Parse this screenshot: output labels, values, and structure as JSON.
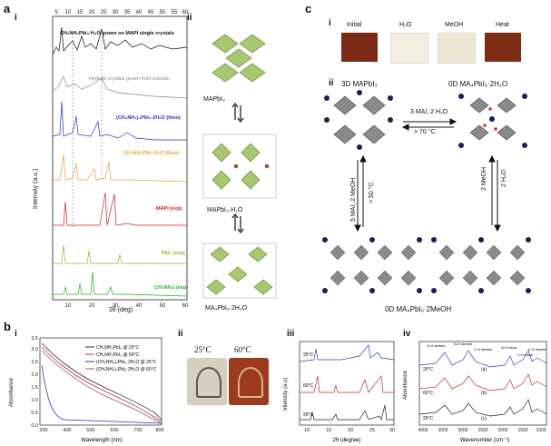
{
  "panel_a": {
    "letter": "a",
    "sub_i": "i",
    "sub_ii": "ii",
    "top_ticks": [
      "5",
      "10",
      "15",
      "20",
      "25",
      "30",
      "35",
      "40",
      "45",
      "50",
      "55",
      "60"
    ],
    "bottom_ticks": [
      "10",
      "20",
      "30",
      "40",
      "50",
      "60"
    ],
    "xlabel": "2θ (deg)",
    "ylabel": "Intensity (a.u.)",
    "traces": [
      {
        "label": "CH₃NH₃PbI₃·H₂O grown on MAPI single crystals",
        "color": "#111111"
      },
      {
        "label": "Hydrate crystals grown from solution",
        "color": "#8a8a8a"
      },
      {
        "label": "(CH₃NH₃)₄PbI₆·2H₂O (theo)",
        "color": "#2b2bd0"
      },
      {
        "label": "CH₃NH₃PbI₃·H₂O (theo)",
        "color": "#e6a23a"
      },
      {
        "label": "MAPI (exp)",
        "color": "#c62020"
      },
      {
        "label": "PbI₂ (exp)",
        "color": "#8ab82a"
      },
      {
        "label": "CH₃NH₃I (exp)",
        "color": "#1bb01b"
      }
    ],
    "structures": [
      "MAPbI₃",
      "MAPbI₃·H₂O",
      "MA₄PbI₆·2H₂O"
    ]
  },
  "panel_c": {
    "letter": "c",
    "sub_i": "i",
    "sub_ii": "ii",
    "swatches": [
      {
        "label": "Initial",
        "color": "#7a2a15"
      },
      {
        "label": "H₂O",
        "color": "#f2eee0"
      },
      {
        "label": "MeOH",
        "color": "#ede7d3"
      },
      {
        "label": "Heat",
        "color": "#7d2d16"
      }
    ],
    "label_3d": "3D MAPbI₃",
    "label_0d_hyd": "0D MA₄PbI₆·2H₂O",
    "label_0d_meoh": "0D MA₄PbI₆·2MeOH",
    "arrow_top_upper": "3 MAI, 2 H₂O",
    "arrow_top_lower": "> 70 °C",
    "arrow_left_a": "5 MAI, 2 MeOH",
    "arrow_left_b": "> 50 °C",
    "arrow_right_a": "2 MeOH",
    "arrow_right_b": "2 H₂O"
  },
  "panel_b": {
    "letter": "b",
    "sub_i": "i",
    "sub_ii": "ii",
    "sub_iii": "iii",
    "sub_iv": "iv",
    "uv": {
      "ylabel": "Absorbance",
      "xlabel": "Wavelength (nm)",
      "yticks": [
        "0.0",
        "0.5",
        "1.0",
        "1.5",
        "2.0",
        "2.5",
        "3.0",
        "3.5"
      ],
      "xticks": [
        "300",
        "400",
        "500",
        "600",
        "700",
        "800"
      ],
      "legend": [
        {
          "label": "CH₃NH₃PbI₃ @ 25°C",
          "color": "#333333"
        },
        {
          "label": "CH₃NH₃PbI₃ @ 60°C",
          "color": "#b03060"
        },
        {
          "label": "(CH₃NH₃)₄PbI₆·2H₂O @ 25°C",
          "color": "#3030b0"
        },
        {
          "label": "(CH₃NH₃)₄PbI₆·2H₂O @ 60°C",
          "color": "#a05070"
        }
      ]
    },
    "photos": {
      "left": "25°C",
      "right": "60°C"
    },
    "xrd": {
      "ylabel": "Intensity (a.u)",
      "xlabel": "2θ (degree)",
      "xticks": [
        "10",
        "15",
        "20",
        "25",
        "30"
      ],
      "labels": [
        "25°C",
        "60°C",
        "25°C"
      ]
    },
    "ftir": {
      "ylabel": "Absorbance",
      "xlabel": "Wavenumber (cm⁻¹)",
      "xticks": [
        "4000",
        "3500",
        "3000",
        "2500",
        "2000",
        "1500",
        "1000"
      ],
      "annotations": [
        "O-H stretch",
        "N-H stretch",
        "C-H stretch",
        "N-H bend",
        "C-H bend",
        "C-N stretch"
      ],
      "labels": [
        "25°C",
        "60°C",
        "25°C"
      ],
      "tags": [
        "(a)",
        "(b)",
        "(c)"
      ]
    }
  }
}
